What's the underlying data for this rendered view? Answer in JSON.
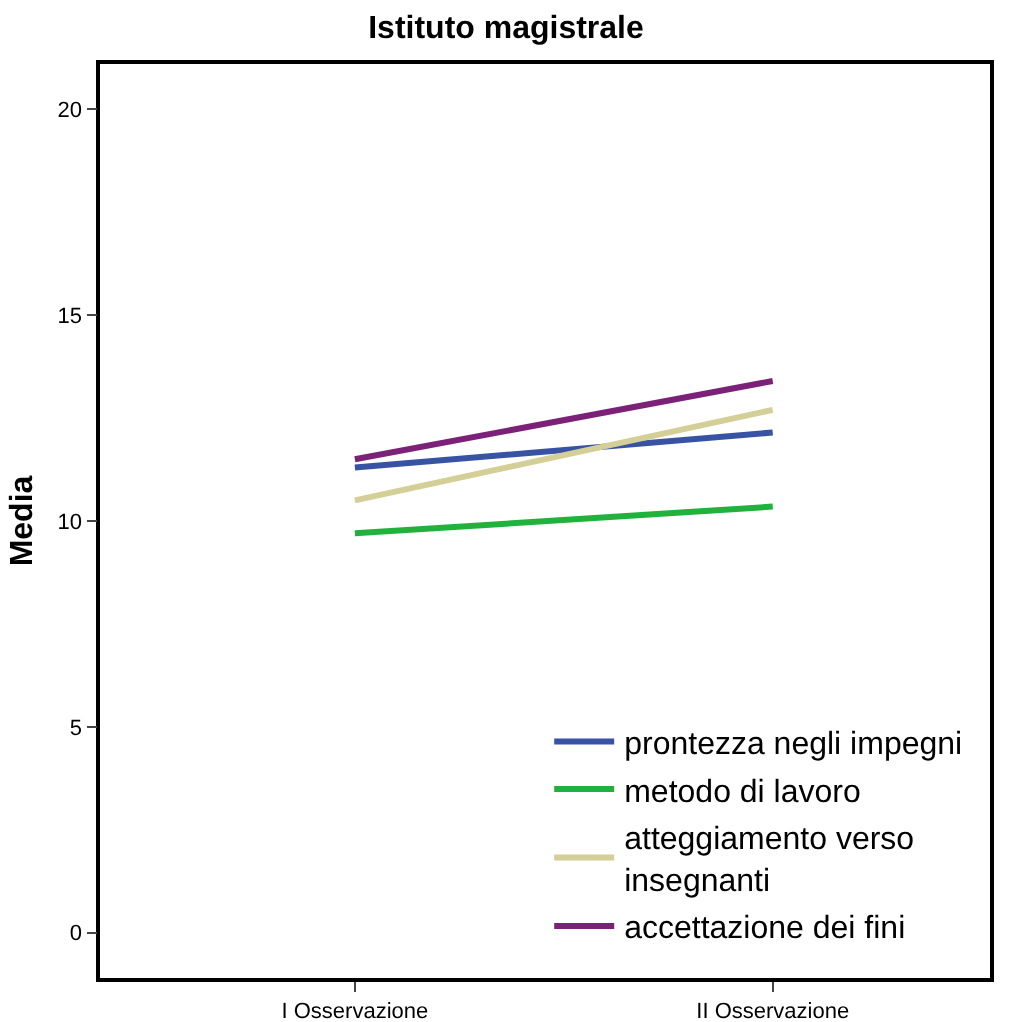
{
  "chart_data": {
    "type": "line",
    "title": "Istituto magistrale",
    "ylabel": "Media",
    "categories": [
      "I Osservazione",
      "II Osservazione"
    ],
    "series": [
      {
        "name": "prontezza negli impegni",
        "color": "#3953a4",
        "values": [
          11.3,
          12.15
        ]
      },
      {
        "name": "metodo di lavoro",
        "color": "#21b23e",
        "values": [
          9.7,
          10.35
        ]
      },
      {
        "name": "atteggiamento verso insegnanti",
        "color": "#d4cf96",
        "values": [
          10.5,
          12.7
        ]
      },
      {
        "name": "accettazione dei fini",
        "color": "#7b2278",
        "values": [
          11.5,
          13.4
        ]
      }
    ],
    "ylim": [
      -1.1,
      21.1
    ],
    "yticks": [
      0,
      5,
      10,
      15,
      20
    ],
    "grid": false,
    "legend": "bottom right",
    "marker": "none",
    "line_style": "solid"
  }
}
